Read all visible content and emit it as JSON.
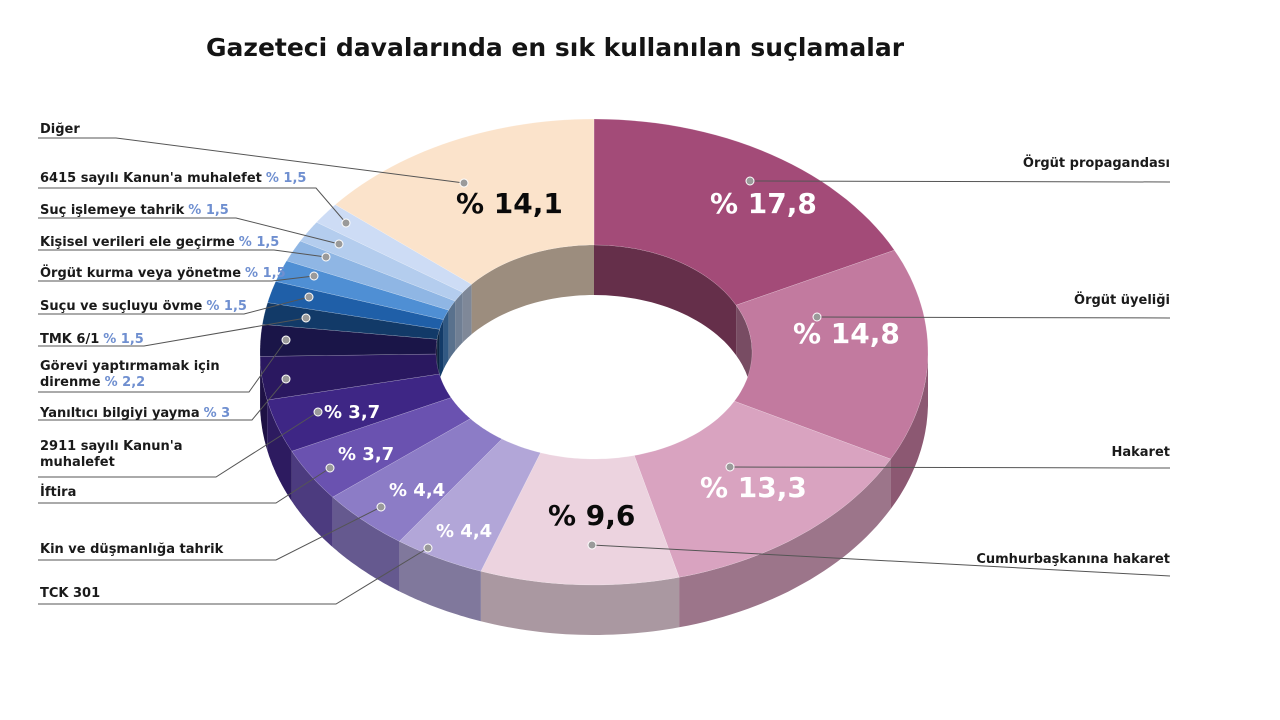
{
  "chart_data": {
    "type": "pie",
    "title": "Gazeteci davalarında en sık kullanılan suçlamalar",
    "unit_prefix": "%",
    "slices": [
      {
        "label": "Örgüt propagandası",
        "value": 17.8,
        "value_text": "% 17,8",
        "color": "#a34b78"
      },
      {
        "label": "Örgüt üyeliği",
        "value": 14.8,
        "value_text": "% 14,8",
        "color": "#c27a9f"
      },
      {
        "label": "Hakaret",
        "value": 13.3,
        "value_text": "% 13,3",
        "color": "#d9a3c0"
      },
      {
        "label": "Cumhurbaşkanına hakaret",
        "value": 9.6,
        "value_text": "% 9,6",
        "color": "#ecd3df"
      },
      {
        "label": "TCK 301",
        "value": 4.4,
        "value_text": "% 4,4",
        "color": "#b2a6d8"
      },
      {
        "label": "Kin ve düşmanlığa tahrik",
        "value": 4.4,
        "value_text": "% 4,4",
        "color": "#8c7cc6"
      },
      {
        "label": "İftira",
        "value": 3.7,
        "value_text": "% 3,7",
        "color": "#6a52b0"
      },
      {
        "label": "2911 sayılı Kanun'a muhalefet",
        "value": 3.7,
        "value_text": "% 3,7",
        "color": "#3e2685"
      },
      {
        "label": "Yanıltıcı bilgiyi yayma",
        "value": 3.0,
        "value_text": "% 3",
        "color": "#2a1860"
      },
      {
        "label": "Görevi yaptırmamak için direnme",
        "value": 2.2,
        "value_text": "% 2,2",
        "color": "#1a1548"
      },
      {
        "label": "TMK 6/1",
        "value": 1.5,
        "value_text": "% 1,5",
        "color": "#123a68"
      },
      {
        "label": "Suçu ve suçluyu övme",
        "value": 1.5,
        "value_text": "% 1,5",
        "color": "#1f5fa8"
      },
      {
        "label": "Örgüt kurma veya yönetme",
        "value": 1.5,
        "value_text": "% 1,5",
        "color": "#4f8fd4"
      },
      {
        "label": "Kişisel verileri ele geçirme",
        "value": 1.5,
        "value_text": "% 1,5",
        "color": "#8fb6e4"
      },
      {
        "label": "Suç işlemeye tahrik",
        "value": 1.5,
        "value_text": "% 1,5",
        "color": "#b4cdee"
      },
      {
        "label": "6415 sayılı Kanun'a muhalefet",
        "value": 1.5,
        "value_text": "% 1,5",
        "color": "#cddcf5"
      },
      {
        "label": "Diğer",
        "value": 14.1,
        "value_text": "% 14,1",
        "color": "#fbe3cb"
      }
    ]
  }
}
